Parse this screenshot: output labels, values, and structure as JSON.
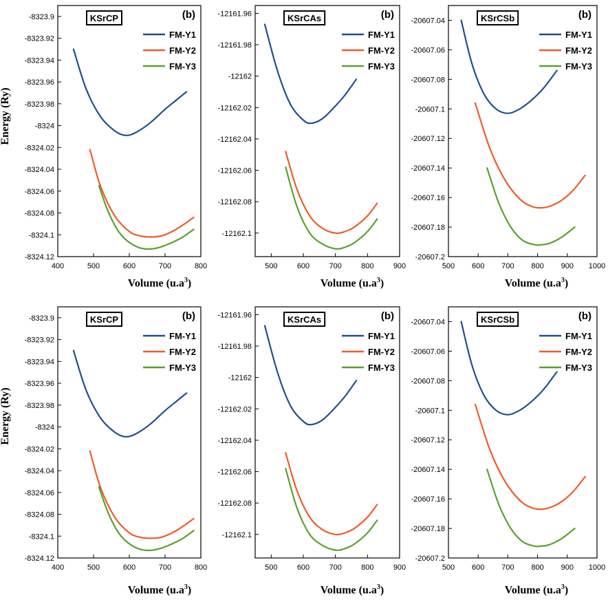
{
  "colors": {
    "FM-Y1": "#1f4e8c",
    "FM-Y2": "#f05a28",
    "FM-Y3": "#5aa02c",
    "axis": "#000000"
  },
  "labels": {
    "ylabel": "Energy (Ry)",
    "xlabel_text": "Volume (u.a",
    "xlabel_exp": "3",
    "xlabel_close": ")"
  },
  "chart_data": [
    {
      "type": "line",
      "title": "KSrCP",
      "panel_label": "(b)",
      "xlabel": "Volume (u.a³)",
      "ylabel": "Energy (Ry)",
      "xlim": [
        400,
        800
      ],
      "ylim": [
        -8324.12,
        -8323.89
      ],
      "xticks": [
        400,
        500,
        600,
        700,
        800
      ],
      "xtick_labels": [
        "400",
        "500",
        "600",
        "700",
        "800"
      ],
      "yticks": [
        -8323.9,
        -8323.92,
        -8323.94,
        -8323.96,
        -8323.98,
        -8324,
        -8324.02,
        -8324.04,
        -8324.06,
        -8324.08,
        -8324.1,
        -8324.12
      ],
      "ytick_labels": [
        "-8323.9",
        "-8323.92",
        "-8323.94",
        "-8323.96",
        "-8323.98",
        "-8324",
        "-8324.02",
        "-8324.04",
        "-8324.06",
        "-8324.08",
        "-8324.1",
        "-8324.12"
      ],
      "series": [
        {
          "name": "FM-Y1",
          "x": [
            444,
            480,
            520,
            560,
            590,
            620,
            660,
            700,
            730,
            760
          ],
          "y": [
            -8323.93,
            -8323.967,
            -8323.992,
            -8324.005,
            -8324.009,
            -8324.006,
            -8323.997,
            -8323.985,
            -8323.977,
            -8323.969
          ]
        },
        {
          "name": "FM-Y2",
          "x": [
            490,
            520,
            560,
            600,
            630,
            660,
            690,
            720,
            750,
            780
          ],
          "y": [
            -8324.022,
            -8324.056,
            -8324.083,
            -8324.097,
            -8324.101,
            -8324.102,
            -8324.101,
            -8324.097,
            -8324.091,
            -8324.084
          ]
        },
        {
          "name": "FM-Y3",
          "x": [
            515,
            540,
            570,
            600,
            630,
            660,
            690,
            720,
            750,
            780
          ],
          "y": [
            -8324.055,
            -8324.078,
            -8324.097,
            -8324.107,
            -8324.112,
            -8324.113,
            -8324.111,
            -8324.107,
            -8324.102,
            -8324.095
          ]
        }
      ]
    },
    {
      "type": "line",
      "title": "KSrCAs",
      "panel_label": "(b)",
      "xlabel": "Volume (u.a³)",
      "ylabel": "Energy (Ry)",
      "xlim": [
        450,
        900
      ],
      "ylim": [
        -12162.115,
        -12161.955
      ],
      "xticks": [
        500,
        600,
        700,
        800,
        900
      ],
      "xtick_labels": [
        "500",
        "600",
        "700",
        "800",
        "900"
      ],
      "yticks": [
        -12161.96,
        -12161.98,
        -12162,
        -12162.02,
        -12162.04,
        -12162.06,
        -12162.08,
        -12162.1
      ],
      "ytick_labels": [
        "-12161.96",
        "-12161.98",
        "-12162",
        "-12162.02",
        "-12162.04",
        "-12162.06",
        "-12162.08",
        "-12162.1"
      ],
      "series": [
        {
          "name": "FM-Y1",
          "x": [
            480,
            520,
            560,
            600,
            625,
            660,
            700,
            730,
            765
          ],
          "y": [
            -12161.967,
            -12161.997,
            -12162.018,
            -12162.028,
            -12162.03,
            -12162.027,
            -12162.019,
            -12162.012,
            -12162.002
          ]
        },
        {
          "name": "FM-Y2",
          "x": [
            545,
            580,
            620,
            660,
            700,
            730,
            760,
            800,
            830
          ],
          "y": [
            -12162.048,
            -12162.072,
            -12162.089,
            -12162.097,
            -12162.1,
            -12162.099,
            -12162.096,
            -12162.089,
            -12162.081
          ]
        },
        {
          "name": "FM-Y3",
          "x": [
            545,
            580,
            620,
            660,
            700,
            730,
            760,
            800,
            830
          ],
          "y": [
            -12162.058,
            -12162.083,
            -12162.1,
            -12162.107,
            -12162.11,
            -12162.109,
            -12162.106,
            -12162.099,
            -12162.091
          ]
        }
      ]
    },
    {
      "type": "line",
      "title": "KSrCSb",
      "panel_label": "(b)",
      "xlabel": "Volume (u.a³)",
      "ylabel": "Energy (Ry)",
      "xlim": [
        500,
        1000
      ],
      "ylim": [
        -20607.2,
        -20607.03
      ],
      "xticks": [
        500,
        600,
        700,
        800,
        900,
        1000
      ],
      "xtick_labels": [
        "500",
        "600",
        "700",
        "800",
        "900",
        "1000"
      ],
      "yticks": [
        -20607.04,
        -20607.06,
        -20607.08,
        -20607.1,
        -20607.12,
        -20607.14,
        -20607.16,
        -20607.18,
        -20607.2
      ],
      "ytick_labels": [
        "-20607.04",
        "-20607.06",
        "-20607.08",
        "-20607.1",
        "-20607.12",
        "-20607.14",
        "-20607.16",
        "-20607.18",
        "-20607.2"
      ],
      "series": [
        {
          "name": "FM-Y1",
          "x": [
            543,
            580,
            620,
            660,
            700,
            740,
            780,
            820,
            865
          ],
          "y": [
            -20607.04,
            -20607.07,
            -20607.09,
            -20607.1,
            -20607.103,
            -20607.1,
            -20607.094,
            -20607.086,
            -20607.074
          ]
        },
        {
          "name": "FM-Y2",
          "x": [
            590,
            640,
            690,
            740,
            780,
            810,
            840,
            880,
            920,
            960
          ],
          "y": [
            -20607.096,
            -20607.127,
            -20607.148,
            -20607.161,
            -20607.166,
            -20607.167,
            -20607.166,
            -20607.162,
            -20607.155,
            -20607.145
          ]
        },
        {
          "name": "FM-Y3",
          "x": [
            630,
            670,
            710,
            750,
            790,
            810,
            840,
            880,
            925
          ],
          "y": [
            -20607.14,
            -20607.164,
            -20607.18,
            -20607.189,
            -20607.192,
            -20607.192,
            -20607.191,
            -20607.187,
            -20607.18
          ]
        }
      ]
    },
    {
      "type": "line",
      "title": "KSrCP",
      "panel_label": "(b)",
      "xlabel": "Volume (u.a³)",
      "ylabel": "Energy (Ry)",
      "xlim": [
        400,
        800
      ],
      "ylim": [
        -8324.12,
        -8323.89
      ],
      "xticks": [
        400,
        500,
        600,
        700,
        800
      ],
      "xtick_labels": [
        "400",
        "500",
        "600",
        "700",
        "800"
      ],
      "yticks": [
        -8323.9,
        -8323.92,
        -8323.94,
        -8323.96,
        -8323.98,
        -8324,
        -8324.02,
        -8324.04,
        -8324.06,
        -8324.08,
        -8324.1,
        -8324.12
      ],
      "ytick_labels": [
        "-8323.9",
        "-8323.92",
        "-8323.94",
        "-8323.96",
        "-8323.98",
        "-8324",
        "-8324.02",
        "-8324.04",
        "-8324.06",
        "-8324.08",
        "-8324.1",
        "-8324.12"
      ],
      "series": [
        {
          "name": "FM-Y1",
          "x": [
            444,
            480,
            520,
            560,
            590,
            620,
            660,
            700,
            730,
            760
          ],
          "y": [
            -8323.93,
            -8323.967,
            -8323.992,
            -8324.005,
            -8324.009,
            -8324.006,
            -8323.997,
            -8323.985,
            -8323.977,
            -8323.969
          ]
        },
        {
          "name": "FM-Y2",
          "x": [
            490,
            520,
            560,
            600,
            630,
            660,
            690,
            720,
            750,
            780
          ],
          "y": [
            -8324.022,
            -8324.056,
            -8324.083,
            -8324.097,
            -8324.101,
            -8324.102,
            -8324.101,
            -8324.097,
            -8324.091,
            -8324.084
          ]
        },
        {
          "name": "FM-Y3",
          "x": [
            515,
            540,
            570,
            600,
            630,
            660,
            690,
            720,
            750,
            780
          ],
          "y": [
            -8324.055,
            -8324.078,
            -8324.097,
            -8324.107,
            -8324.112,
            -8324.113,
            -8324.111,
            -8324.107,
            -8324.102,
            -8324.095
          ]
        }
      ]
    },
    {
      "type": "line",
      "title": "KSrCAs",
      "panel_label": "(b)",
      "xlabel": "Volume (u.a³)",
      "ylabel": "Energy (Ry)",
      "xlim": [
        450,
        900
      ],
      "ylim": [
        -12162.115,
        -12161.955
      ],
      "xticks": [
        500,
        600,
        700,
        800,
        900
      ],
      "xtick_labels": [
        "500",
        "600",
        "700",
        "800",
        "900"
      ],
      "yticks": [
        -12161.96,
        -12161.98,
        -12162,
        -12162.02,
        -12162.04,
        -12162.06,
        -12162.08,
        -12162.1
      ],
      "ytick_labels": [
        "-12161.96",
        "-12161.98",
        "-12162",
        "-12162.02",
        "-12162.04",
        "-12162.06",
        "-12162.08",
        "-12162.1"
      ],
      "series": [
        {
          "name": "FM-Y1",
          "x": [
            480,
            520,
            560,
            600,
            625,
            660,
            700,
            730,
            765
          ],
          "y": [
            -12161.967,
            -12161.997,
            -12162.018,
            -12162.028,
            -12162.03,
            -12162.027,
            -12162.019,
            -12162.012,
            -12162.002
          ]
        },
        {
          "name": "FM-Y2",
          "x": [
            545,
            580,
            620,
            660,
            700,
            730,
            760,
            800,
            830
          ],
          "y": [
            -12162.048,
            -12162.072,
            -12162.089,
            -12162.097,
            -12162.1,
            -12162.099,
            -12162.096,
            -12162.089,
            -12162.081
          ]
        },
        {
          "name": "FM-Y3",
          "x": [
            545,
            580,
            620,
            660,
            700,
            730,
            760,
            800,
            830
          ],
          "y": [
            -12162.058,
            -12162.083,
            -12162.1,
            -12162.107,
            -12162.11,
            -12162.109,
            -12162.106,
            -12162.099,
            -12162.091
          ]
        }
      ]
    },
    {
      "type": "line",
      "title": "KSrCSb",
      "panel_label": "(b)",
      "xlabel": "Volume (u.a³)",
      "ylabel": "Energy (Ry)",
      "xlim": [
        500,
        1000
      ],
      "ylim": [
        -20607.2,
        -20607.03
      ],
      "xticks": [
        500,
        600,
        700,
        800,
        900,
        1000
      ],
      "xtick_labels": [
        "500",
        "600",
        "700",
        "800",
        "900",
        "1000"
      ],
      "yticks": [
        -20607.04,
        -20607.06,
        -20607.08,
        -20607.1,
        -20607.12,
        -20607.14,
        -20607.16,
        -20607.18,
        -20607.2
      ],
      "ytick_labels": [
        "-20607.04",
        "-20607.06",
        "-20607.08",
        "-20607.1",
        "-20607.12",
        "-20607.14",
        "-20607.16",
        "-20607.18",
        "-20607.2"
      ],
      "series": [
        {
          "name": "FM-Y1",
          "x": [
            543,
            580,
            620,
            660,
            700,
            740,
            780,
            820,
            865
          ],
          "y": [
            -20607.04,
            -20607.07,
            -20607.09,
            -20607.1,
            -20607.103,
            -20607.1,
            -20607.094,
            -20607.086,
            -20607.074
          ]
        },
        {
          "name": "FM-Y2",
          "x": [
            590,
            640,
            690,
            740,
            780,
            810,
            840,
            880,
            920,
            960
          ],
          "y": [
            -20607.096,
            -20607.127,
            -20607.148,
            -20607.161,
            -20607.166,
            -20607.167,
            -20607.166,
            -20607.162,
            -20607.155,
            -20607.145
          ]
        },
        {
          "name": "FM-Y3",
          "x": [
            630,
            670,
            710,
            750,
            790,
            810,
            840,
            880,
            925
          ],
          "y": [
            -20607.14,
            -20607.164,
            -20607.18,
            -20607.189,
            -20607.192,
            -20607.192,
            -20607.191,
            -20607.187,
            -20607.18
          ]
        }
      ]
    }
  ]
}
